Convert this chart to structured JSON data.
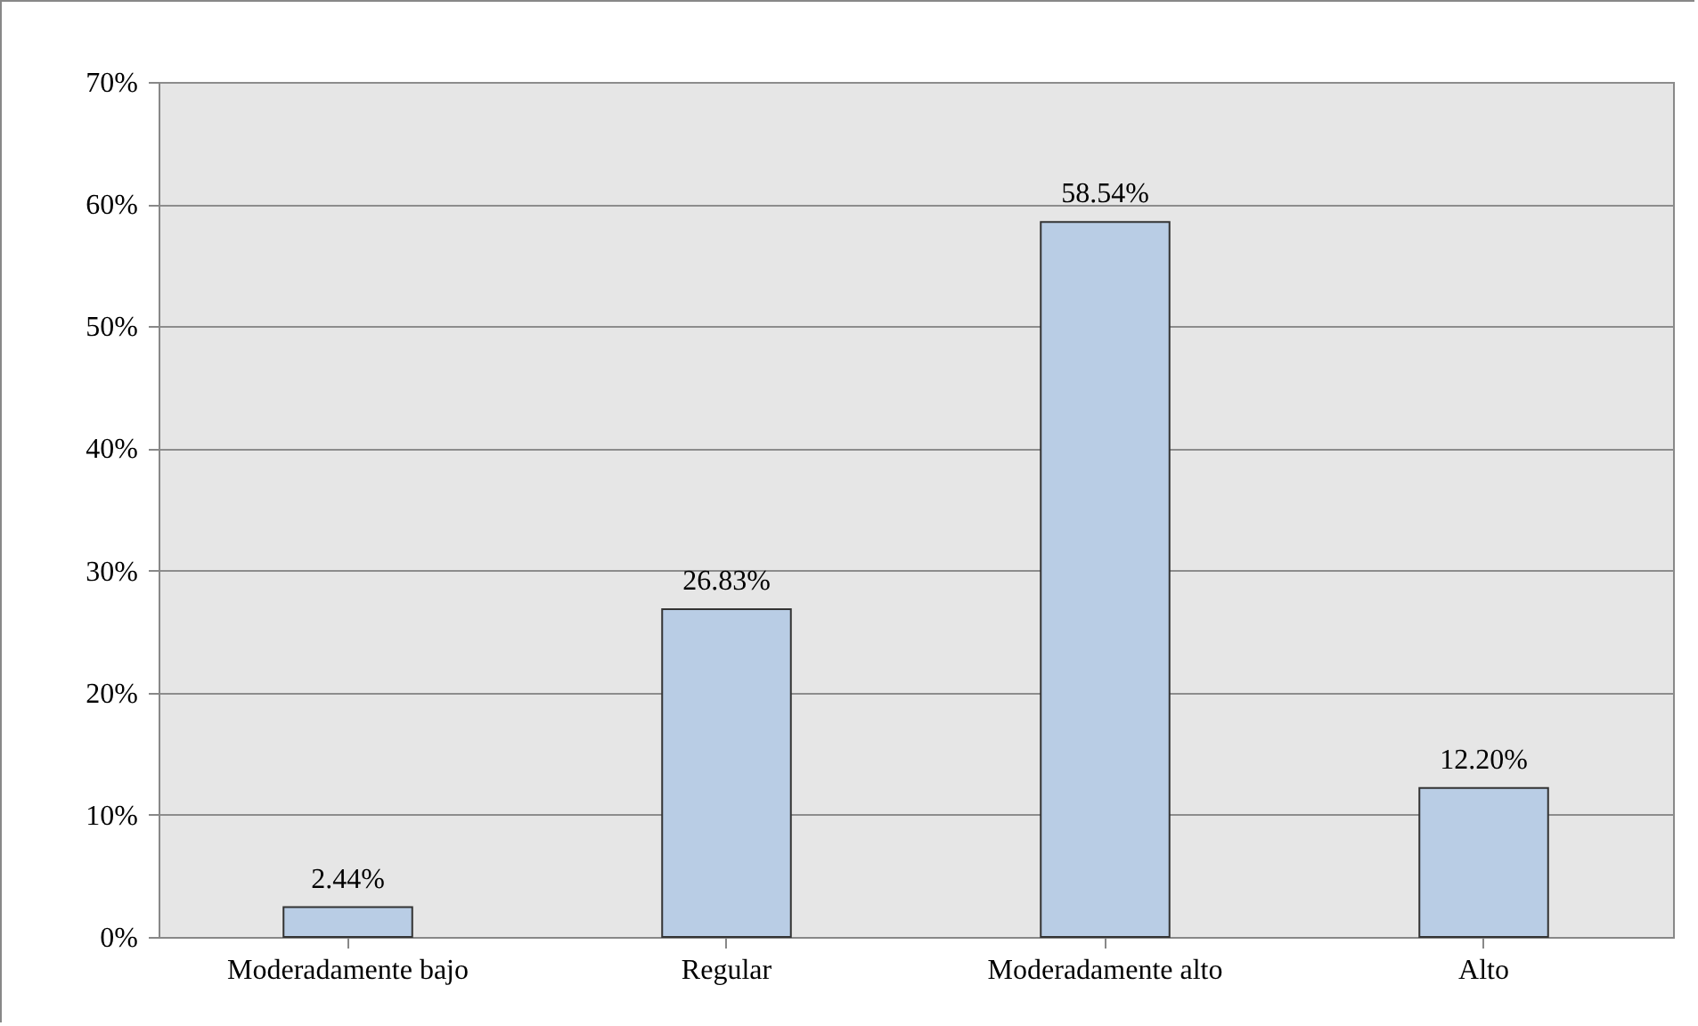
{
  "chart_data": {
    "type": "bar",
    "categories": [
      "Moderadamente bajo",
      "Regular",
      "Moderadamente alto",
      "Alto"
    ],
    "values": [
      2.44,
      26.83,
      58.54,
      12.2
    ],
    "value_labels": [
      "2.44%",
      "26.83%",
      "58.54%",
      "12.20%"
    ],
    "color": "#b9cde5",
    "ylim": [
      0,
      70
    ],
    "yticks": [
      {
        "value": 0,
        "label": "0%"
      },
      {
        "value": 10,
        "label": "10%"
      },
      {
        "value": 20,
        "label": "20%"
      },
      {
        "value": 30,
        "label": "30%"
      },
      {
        "value": 40,
        "label": "40%"
      },
      {
        "value": 50,
        "label": "50%"
      },
      {
        "value": 60,
        "label": "60%"
      },
      {
        "value": 70,
        "label": "70%"
      }
    ],
    "grid": "y"
  }
}
